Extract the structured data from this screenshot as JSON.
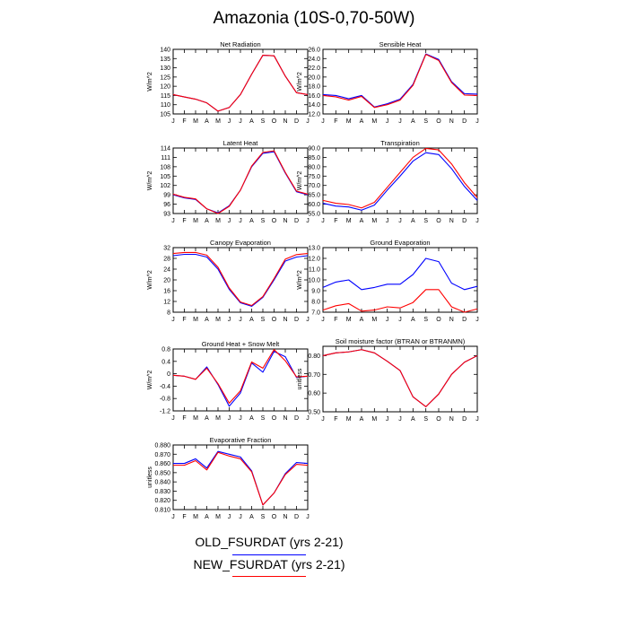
{
  "figure": {
    "title": "Amazonia (10S-0,70-50W)",
    "months": [
      "J",
      "F",
      "M",
      "A",
      "M",
      "J",
      "J",
      "A",
      "S",
      "O",
      "N",
      "D",
      "J"
    ]
  },
  "legend": [
    {
      "label": "OLD_FSURDAT (yrs 2-21)",
      "color": "#0000ff"
    },
    {
      "label": "NEW_FSURDAT (yrs 2-21)",
      "color": "#ff0000"
    }
  ],
  "chart_data": [
    {
      "type": "line",
      "title": "Net Radiation",
      "ylabel": "W/m^2",
      "xlabel": "",
      "categories": [
        "J",
        "F",
        "M",
        "A",
        "M",
        "J",
        "J",
        "A",
        "S",
        "O",
        "N",
        "D",
        "J"
      ],
      "ylim": [
        105,
        140
      ],
      "yticks": [
        "105",
        "110",
        "115",
        "120",
        "125",
        "130",
        "135",
        "140"
      ],
      "ytick_values": [
        105,
        110,
        115,
        120,
        125,
        130,
        135,
        140
      ],
      "series": [
        {
          "name": "OLD_FSURDAT (yrs 2-21)",
          "values": [
            115.5,
            114.2,
            113.0,
            111.0,
            106.5,
            108.5,
            115.5,
            126.5,
            136.8,
            136.5,
            125.5,
            116.5,
            115.5
          ]
        },
        {
          "name": "NEW_FSURDAT (yrs 2-21)",
          "values": [
            115.5,
            114.2,
            113.0,
            111.0,
            106.5,
            108.5,
            115.5,
            126.5,
            136.8,
            136.5,
            125.5,
            116.5,
            115.5
          ]
        }
      ]
    },
    {
      "type": "line",
      "title": "Sensible Heat",
      "ylabel": "W/m^2",
      "xlabel": "",
      "categories": [
        "J",
        "F",
        "M",
        "A",
        "M",
        "J",
        "J",
        "A",
        "S",
        "O",
        "N",
        "D",
        "J"
      ],
      "ylim": [
        12,
        26
      ],
      "yticks": [
        "12.0",
        "14.0",
        "16.0",
        "18.0",
        "20.0",
        "22.0",
        "24.0",
        "26.0"
      ],
      "ytick_values": [
        12,
        14,
        16,
        18,
        20,
        22,
        24,
        26
      ],
      "series": [
        {
          "name": "OLD_FSURDAT (yrs 2-21)",
          "values": [
            16.2,
            16.0,
            15.3,
            16.0,
            13.5,
            14.2,
            15.2,
            18.4,
            25.0,
            23.8,
            19.0,
            16.4,
            16.3
          ]
        },
        {
          "name": "NEW_FSURDAT (yrs 2-21)",
          "values": [
            16.0,
            15.7,
            15.0,
            15.8,
            13.4,
            14.0,
            15.0,
            18.2,
            24.9,
            23.6,
            18.8,
            16.1,
            16.0
          ]
        }
      ]
    },
    {
      "type": "line",
      "title": "Latent Heat",
      "ylabel": "W/m^2",
      "xlabel": "",
      "categories": [
        "J",
        "F",
        "M",
        "A",
        "M",
        "J",
        "J",
        "A",
        "S",
        "O",
        "N",
        "D",
        "J"
      ],
      "ylim": [
        93,
        114
      ],
      "yticks": [
        "93",
        "96",
        "99",
        "102",
        "105",
        "108",
        "111",
        "114"
      ],
      "ytick_values": [
        93,
        96,
        99,
        102,
        105,
        108,
        111,
        114
      ],
      "series": [
        {
          "name": "OLD_FSURDAT (yrs 2-21)",
          "values": [
            99.0,
            98.0,
            97.5,
            94.5,
            93.2,
            95.5,
            100.5,
            108.0,
            112.3,
            112.8,
            106.0,
            100.0,
            99.0
          ]
        },
        {
          "name": "NEW_FSURDAT (yrs 2-21)",
          "values": [
            99.2,
            98.2,
            97.7,
            94.5,
            93.0,
            95.3,
            100.5,
            108.2,
            112.6,
            113.1,
            106.2,
            100.2,
            99.2
          ]
        }
      ]
    },
    {
      "type": "line",
      "title": "Transpiration",
      "ylabel": "W/m^2",
      "xlabel": "",
      "categories": [
        "J",
        "F",
        "M",
        "A",
        "M",
        "J",
        "J",
        "A",
        "S",
        "O",
        "N",
        "D",
        "J"
      ],
      "ylim": [
        55,
        90
      ],
      "yticks": [
        "55.0",
        "60.0",
        "65.0",
        "70.0",
        "75.0",
        "80.0",
        "85.0",
        "90.0"
      ],
      "ytick_values": [
        55,
        60,
        65,
        70,
        75,
        80,
        85,
        90
      ],
      "series": [
        {
          "name": "OLD_FSURDAT (yrs 2-21)",
          "values": [
            60.5,
            59.0,
            58.5,
            56.8,
            59.5,
            67.5,
            75.0,
            83.0,
            87.5,
            86.5,
            79.0,
            69.5,
            62.0
          ]
        },
        {
          "name": "NEW_FSURDAT (yrs 2-21)",
          "values": [
            62.0,
            60.5,
            59.8,
            58.0,
            61.0,
            69.0,
            77.0,
            85.0,
            89.8,
            89.0,
            81.5,
            71.5,
            63.5
          ]
        }
      ]
    },
    {
      "type": "line",
      "title": "Canopy Evaporation",
      "ylabel": "W/m^2",
      "xlabel": "",
      "categories": [
        "J",
        "F",
        "M",
        "A",
        "M",
        "J",
        "J",
        "A",
        "S",
        "O",
        "N",
        "D",
        "J"
      ],
      "ylim": [
        8,
        32
      ],
      "yticks": [
        "8",
        "12",
        "16",
        "20",
        "24",
        "28",
        "32"
      ],
      "ytick_values": [
        8,
        12,
        16,
        20,
        24,
        28,
        32
      ],
      "series": [
        {
          "name": "OLD_FSURDAT (yrs 2-21)",
          "values": [
            29.0,
            29.5,
            29.5,
            28.5,
            24.0,
            16.5,
            11.5,
            10.2,
            13.5,
            20.0,
            27.0,
            28.5,
            29.0
          ]
        },
        {
          "name": "NEW_FSURDAT (yrs 2-21)",
          "values": [
            29.8,
            30.2,
            30.2,
            29.2,
            24.7,
            17.0,
            11.8,
            10.5,
            13.8,
            20.5,
            27.7,
            29.4,
            29.8
          ]
        }
      ]
    },
    {
      "type": "line",
      "title": "Ground Evaporation",
      "ylabel": "W/m^2",
      "xlabel": "",
      "categories": [
        "J",
        "F",
        "M",
        "A",
        "M",
        "J",
        "J",
        "A",
        "S",
        "O",
        "N",
        "D",
        "J"
      ],
      "ylim": [
        7,
        13
      ],
      "yticks": [
        "7.0",
        "8.0",
        "9.0",
        "10.0",
        "11.0",
        "12.0",
        "13.0"
      ],
      "ytick_values": [
        7,
        8,
        9,
        10,
        11,
        12,
        13
      ],
      "series": [
        {
          "name": "OLD_FSURDAT (yrs 2-21)",
          "values": [
            9.3,
            9.8,
            10.0,
            9.1,
            9.3,
            9.6,
            9.6,
            10.5,
            12.0,
            11.7,
            9.7,
            9.1,
            9.4
          ]
        },
        {
          "name": "NEW_FSURDAT (yrs 2-21)",
          "values": [
            7.2,
            7.6,
            7.8,
            7.1,
            7.2,
            7.5,
            7.4,
            7.9,
            9.1,
            9.1,
            7.5,
            7.0,
            7.3
          ]
        }
      ]
    },
    {
      "type": "line",
      "title": "Ground Heat + Snow Melt",
      "ylabel": "W/m^2",
      "xlabel": "",
      "categories": [
        "J",
        "F",
        "M",
        "A",
        "M",
        "J",
        "J",
        "A",
        "S",
        "O",
        "N",
        "D",
        "J"
      ],
      "ylim": [
        -1.2,
        0.8
      ],
      "yticks": [
        "-1.2",
        "-0.8",
        "-0.4",
        "0",
        "0.4",
        "0.8"
      ],
      "ytick_values": [
        -1.2,
        -0.8,
        -0.4,
        0,
        0.4,
        0.8
      ],
      "series": [
        {
          "name": "OLD_FSURDAT (yrs 2-21)",
          "values": [
            -0.05,
            -0.08,
            -0.18,
            0.22,
            -0.35,
            -1.05,
            -0.62,
            0.35,
            0.05,
            0.72,
            0.55,
            -0.12,
            -0.08
          ]
        },
        {
          "name": "NEW_FSURDAT (yrs 2-21)",
          "values": [
            -0.05,
            -0.08,
            -0.18,
            0.18,
            -0.32,
            -0.95,
            -0.55,
            0.38,
            0.18,
            0.78,
            0.42,
            -0.1,
            -0.08
          ]
        }
      ]
    },
    {
      "type": "line",
      "title": "Soil moisture factor (BTRAN or BTRANMN)",
      "ylabel": "unitless",
      "xlabel": "",
      "categories": [
        "J",
        "F",
        "M",
        "A",
        "M",
        "J",
        "J",
        "A",
        "S",
        "O",
        "N",
        "D",
        "J"
      ],
      "ylim": [
        0.5,
        0.85
      ],
      "yticks": [
        "0.50",
        "0.60",
        "0.70",
        "0.80"
      ],
      "ytick_values": [
        0.5,
        0.6,
        0.7,
        0.8
      ],
      "series": [
        {
          "name": "OLD_FSURDAT (yrs 2-21)",
          "values": [
            0.8,
            0.815,
            0.82,
            0.832,
            0.815,
            0.77,
            0.72,
            0.58,
            0.527,
            0.595,
            0.7,
            0.765,
            0.8
          ]
        },
        {
          "name": "NEW_FSURDAT (yrs 2-21)",
          "values": [
            0.8,
            0.815,
            0.82,
            0.832,
            0.815,
            0.77,
            0.72,
            0.58,
            0.527,
            0.595,
            0.7,
            0.765,
            0.8
          ]
        }
      ]
    },
    {
      "type": "line",
      "title": "Evaporative Fraction",
      "ylabel": "unitless",
      "xlabel": "",
      "categories": [
        "J",
        "F",
        "M",
        "A",
        "M",
        "J",
        "J",
        "A",
        "S",
        "O",
        "N",
        "D",
        "J"
      ],
      "ylim": [
        0.81,
        0.88
      ],
      "yticks": [
        "0.810",
        "0.820",
        "0.830",
        "0.840",
        "0.850",
        "0.860",
        "0.870",
        "0.880"
      ],
      "ytick_values": [
        0.81,
        0.82,
        0.83,
        0.84,
        0.85,
        0.86,
        0.87,
        0.88
      ],
      "series": [
        {
          "name": "OLD_FSURDAT (yrs 2-21)",
          "values": [
            0.86,
            0.86,
            0.865,
            0.855,
            0.873,
            0.87,
            0.867,
            0.852,
            0.815,
            0.828,
            0.849,
            0.861,
            0.86
          ]
        },
        {
          "name": "NEW_FSURDAT (yrs 2-21)",
          "values": [
            0.858,
            0.858,
            0.863,
            0.853,
            0.872,
            0.868,
            0.865,
            0.851,
            0.815,
            0.828,
            0.848,
            0.859,
            0.858
          ]
        }
      ]
    }
  ]
}
